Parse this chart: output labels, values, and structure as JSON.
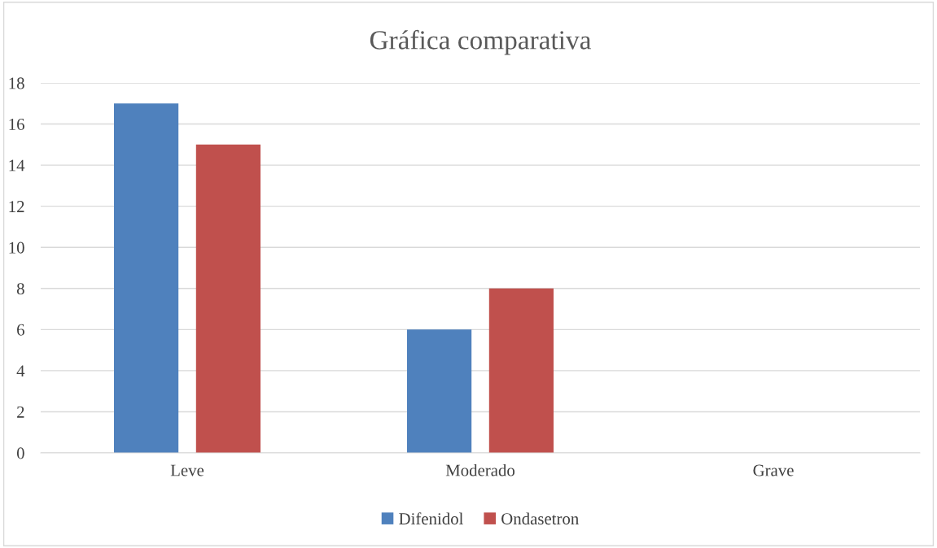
{
  "chart_data": {
    "type": "bar",
    "title": "Gráfica comparativa",
    "categories": [
      "Leve",
      "Moderado",
      "Grave"
    ],
    "series": [
      {
        "name": "Difenidol",
        "color": "#4f81bd",
        "values": [
          17,
          6,
          0
        ]
      },
      {
        "name": "Ondasetron",
        "color": "#c0504d",
        "values": [
          15,
          8,
          0
        ]
      }
    ],
    "ylim": [
      0,
      18
    ],
    "yticks": [
      0,
      2,
      4,
      6,
      8,
      10,
      12,
      14,
      16,
      18
    ],
    "grid": "y",
    "legend": "bottom"
  }
}
